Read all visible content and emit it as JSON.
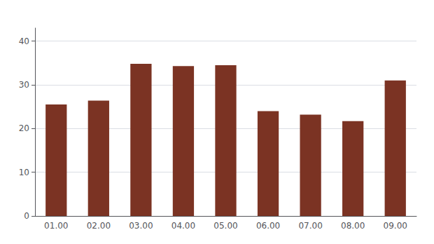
{
  "chart_data": {
    "type": "bar",
    "categories": [
      "01.00",
      "02.00",
      "03.00",
      "04.00",
      "05.00",
      "06.00",
      "07.00",
      "08.00",
      "09.00"
    ],
    "values": [
      25.5,
      26.4,
      34.8,
      34.3,
      34.5,
      24.0,
      23.2,
      21.7,
      31.0
    ],
    "color": "#7B3323",
    "ylim": [
      0,
      43
    ],
    "yticks": [
      0,
      10,
      20,
      30,
      40
    ],
    "grid": true
  }
}
